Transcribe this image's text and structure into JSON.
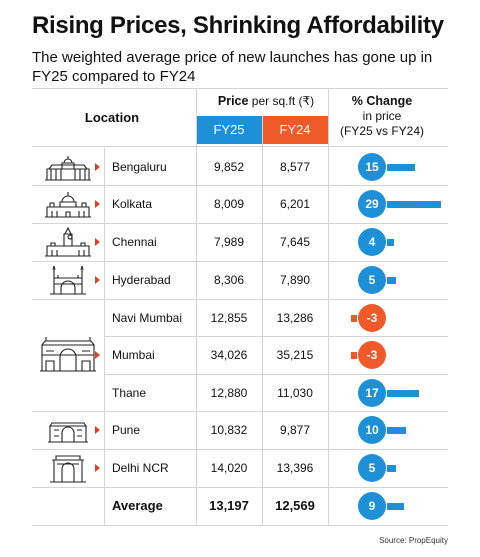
{
  "title": "Rising Prices, Shrinking Affordability",
  "subtitle": "The weighted average price of new launches has gone up in FY25 compared to FY24",
  "table": {
    "location_header": "Location",
    "price_header_bold": "Price",
    "price_header_rest": " per sq.ft (₹)",
    "fy25_label": "FY25",
    "fy24_label": "FY24",
    "change_header_bold": "% Change",
    "change_header_line2": "in price",
    "change_header_line3": "(FY25 vs FY24)"
  },
  "colors": {
    "fy25": "#1e90d8",
    "fy24": "#f05a2a",
    "arrow": "#e0402a",
    "positive": "#1e90d8",
    "negative": "#f05a2a"
  },
  "source": "Source: PropEquity",
  "chart_data": {
    "type": "table",
    "columns": [
      "Location",
      "FY25",
      "FY24",
      "% Change"
    ],
    "rows": [
      {
        "location": "Bengaluru",
        "icon": "vidhana-soudha-icon",
        "fy25": "9,852",
        "fy24": "8,577",
        "change": 15
      },
      {
        "location": "Kolkata",
        "icon": "victoria-memorial-icon",
        "fy25": "8,009",
        "fy24": "6,201",
        "change": 29
      },
      {
        "location": "Chennai",
        "icon": "central-station-icon",
        "fy25": "7,989",
        "fy24": "7,645",
        "change": 4
      },
      {
        "location": "Hyderabad",
        "icon": "charminar-icon",
        "fy25": "8,306",
        "fy24": "7,890",
        "change": 5
      },
      {
        "location": "Navi Mumbai",
        "icon": "",
        "fy25": "12,855",
        "fy24": "13,286",
        "change": -3
      },
      {
        "location": "Mumbai",
        "icon": "gateway-of-india-icon",
        "fy25": "34,026",
        "fy24": "35,215",
        "change": -3
      },
      {
        "location": "Thane",
        "icon": "",
        "fy25": "12,880",
        "fy24": "11,030",
        "change": 17
      },
      {
        "location": "Pune",
        "icon": "shaniwar-wada-icon",
        "fy25": "10,832",
        "fy24": "9,877",
        "change": 10
      },
      {
        "location": "Delhi NCR",
        "icon": "india-gate-icon",
        "fy25": "14,020",
        "fy24": "13,396",
        "change": 5
      }
    ],
    "average": {
      "label": "Average",
      "fy25": "13,197",
      "fy24": "12,569",
      "change": 9
    }
  }
}
